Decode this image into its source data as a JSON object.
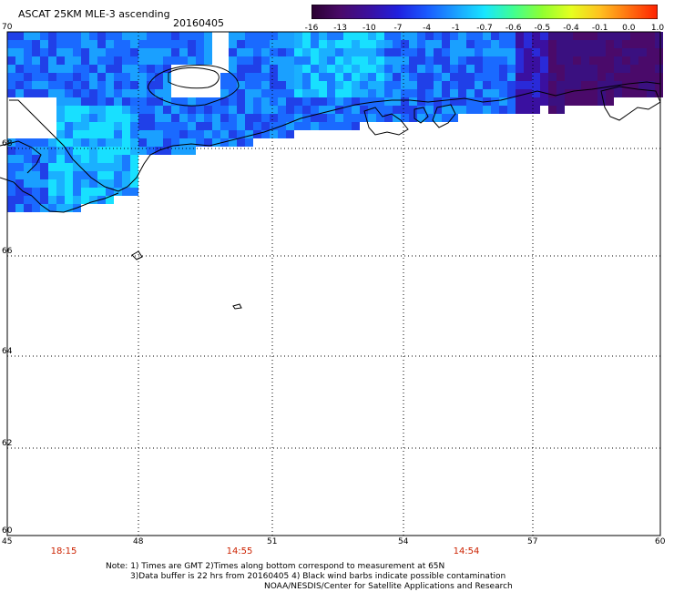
{
  "header": {
    "title": "ASCAT 25KM MLE-3 ascending",
    "date": "20160405"
  },
  "colorbar": {
    "labels": [
      "-16",
      "-13",
      "-10",
      "-7",
      "-4",
      "-1",
      "-0.7",
      "-0.6",
      "-0.5",
      "-0.4",
      "-0.1",
      "0.0",
      "1.0"
    ],
    "colors": [
      "#2a0030",
      "#4a0a6a",
      "#3a10a0",
      "#2020e0",
      "#1a5aff",
      "#1aa0ff",
      "#18e6ff",
      "#40ff90",
      "#90ff30",
      "#e6ff20",
      "#ffc020",
      "#ff7010",
      "#ff2000"
    ]
  },
  "axes": {
    "lat_labels": [
      "70",
      "68",
      "66",
      "64",
      "62",
      "60"
    ],
    "lon_labels": [
      "45",
      "48",
      "51",
      "54",
      "57",
      "60"
    ]
  },
  "times": [
    "18:15",
    "14:55",
    "14:54"
  ],
  "notes": {
    "line1": "Note: 1) Times are GMT 2)Times along bottom correspond to measurement at 65N",
    "line2": "3)Data buffer is 22 hrs from 20160405 4) Black wind barbs indicate possible contamination",
    "line3": "NOAA/NESDIS/Center for Satellite Applications and Research"
  }
}
